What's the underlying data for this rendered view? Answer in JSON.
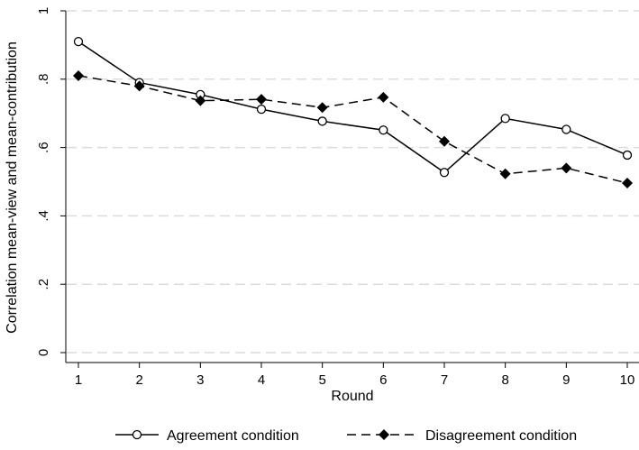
{
  "chart_data": {
    "type": "line",
    "title": "",
    "xlabel": "Round",
    "ylabel": "Correlation mean-view and mean-contribution",
    "x": [
      1,
      2,
      3,
      4,
      5,
      6,
      7,
      8,
      9,
      10
    ],
    "xticks": [
      "1",
      "2",
      "3",
      "4",
      "5",
      "6",
      "7",
      "8",
      "9",
      "10"
    ],
    "ylim": [
      0,
      1
    ],
    "yticks": [
      0,
      0.2,
      0.4,
      0.6,
      0.8,
      1
    ],
    "ytick_labels": [
      "0",
      ".2",
      ".4",
      ".6",
      ".8",
      "1"
    ],
    "grid": "horizontal dashed",
    "legend_position": "bottom",
    "series": [
      {
        "name": "Agreement condition",
        "values": [
          0.91,
          0.79,
          0.755,
          0.712,
          0.677,
          0.651,
          0.527,
          0.685,
          0.653,
          0.578
        ],
        "line_style": "solid",
        "marker": "hollow-circle",
        "color": "#000000"
      },
      {
        "name": "Disagreement condition",
        "values": [
          0.81,
          0.78,
          0.737,
          0.741,
          0.717,
          0.747,
          0.618,
          0.523,
          0.54,
          0.496
        ],
        "line_style": "dashed",
        "marker": "filled-diamond",
        "color": "#000000"
      }
    ]
  }
}
